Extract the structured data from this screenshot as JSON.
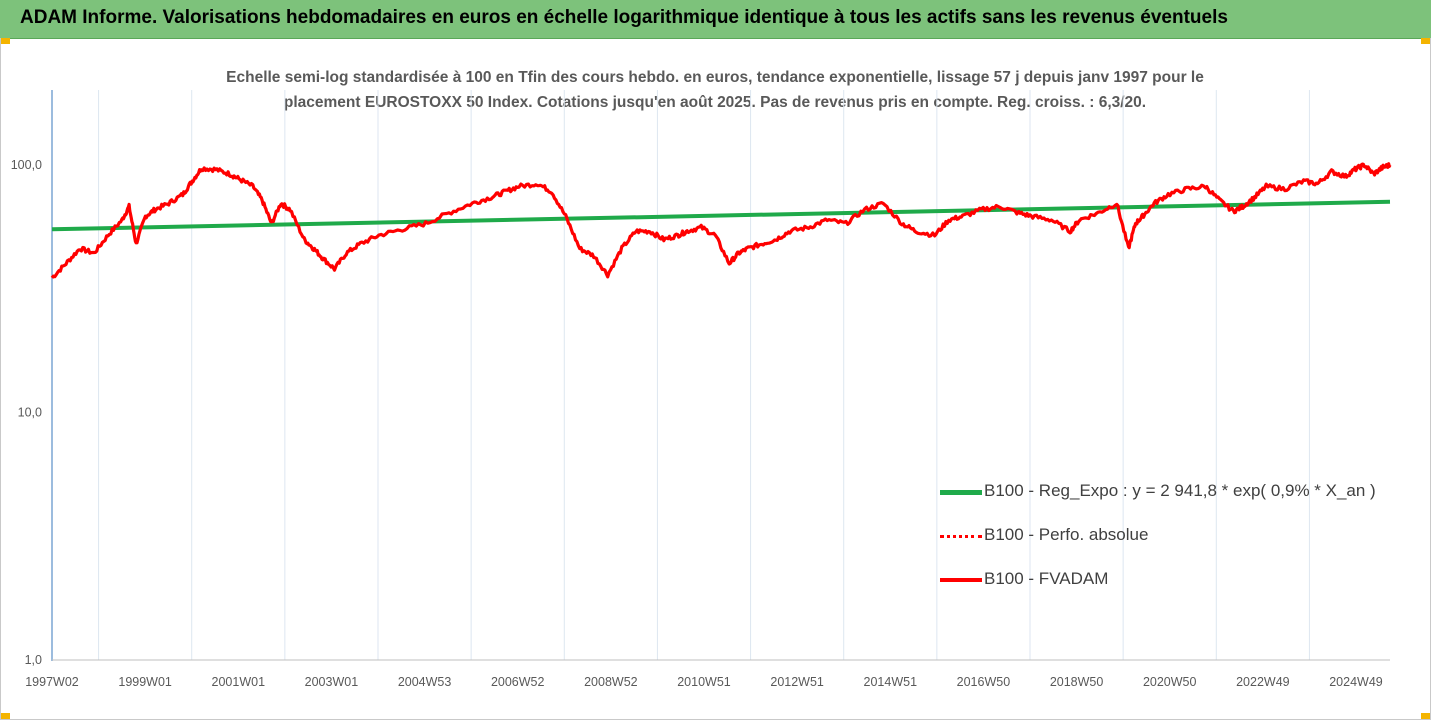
{
  "banner": {
    "title": "ADAM Informe. Valorisations hebdomadaires en euros en échelle logarithmique identique à tous les actifs sans les revenus éventuels",
    "background": "#7dc27b"
  },
  "chart_data": {
    "type": "line",
    "title": "",
    "subtitle_lines": [
      "Echelle semi-log standardisée à 100 en Tfin des cours hebdo. en euros, tendance exponentielle, lissage 57 j depuis janv 1997 pour le",
      "placement EUROSTOXX 50 Index. Cotations jusqu'en août 2025. Pas de revenus pris en compte. Reg. croiss. : 6,3/20."
    ],
    "xlabel": "",
    "ylabel": "",
    "y_scale": "log",
    "ylim": [
      1,
      180
    ],
    "y_ticks": [
      1,
      10,
      100
    ],
    "y_tick_labels": [
      "1,0",
      "10,0",
      "100,0"
    ],
    "x_ticks": [
      "1997W02",
      "1999W01",
      "2001W01",
      "2003W01",
      "2004W53",
      "2006W52",
      "2008W52",
      "2010W51",
      "2012W51",
      "2014W51",
      "2016W50",
      "2018W50",
      "2020W50",
      "2022W49",
      "2024W49"
    ],
    "x_range": [
      1997.0,
      2025.65
    ],
    "grid": "vertical",
    "legend_position": "bottom-right",
    "series": [
      {
        "name": "B100 - Reg_Expo : y = 2 941,8 * exp( 0,9% *  X_an )",
        "color": "#1faa4a",
        "style": "solid",
        "x": [
          1997.0,
          2025.65
        ],
        "y": [
          55,
          71
        ]
      },
      {
        "name": "B100 - Perfo. absolue",
        "color": "#ff0000",
        "style": "dotted",
        "x": [],
        "y": []
      },
      {
        "name": "B100 - FVADAM",
        "color": "#ff0000",
        "style": "solid",
        "x": [
          1997.0,
          1997.3,
          1997.6,
          1997.9,
          1998.2,
          1998.5,
          1998.65,
          1998.8,
          1999.0,
          1999.2,
          1999.5,
          1999.8,
          2000.0,
          2000.2,
          2000.5,
          2000.8,
          2001.0,
          2001.3,
          2001.5,
          2001.7,
          2001.9,
          2002.1,
          2002.4,
          2002.6,
          2002.8,
          2003.05,
          2003.3,
          2003.6,
          2004.0,
          2004.5,
          2005.0,
          2005.5,
          2006.0,
          2006.4,
          2006.7,
          2007.0,
          2007.4,
          2007.7,
          2008.0,
          2008.3,
          2008.6,
          2008.9,
          2009.2,
          2009.5,
          2009.8,
          2010.1,
          2010.4,
          2010.6,
          2010.9,
          2011.2,
          2011.5,
          2011.7,
          2011.9,
          2012.2,
          2012.5,
          2012.8,
          2013.2,
          2013.6,
          2014.0,
          2014.4,
          2014.8,
          2015.2,
          2015.5,
          2015.9,
          2016.2,
          2016.5,
          2016.9,
          2017.3,
          2017.7,
          2018.0,
          2018.4,
          2018.8,
          2019.0,
          2019.4,
          2019.8,
          2020.05,
          2020.2,
          2020.35,
          2020.6,
          2020.9,
          2021.3,
          2021.7,
          2022.0,
          2022.3,
          2022.5,
          2022.75,
          2023.0,
          2023.4,
          2023.8,
          2024.1,
          2024.4,
          2024.7,
          2024.9,
          2025.1,
          2025.3,
          2025.5,
          2025.65
        ],
        "y": [
          35,
          40,
          46,
          44,
          52,
          60,
          68,
          48,
          62,
          66,
          70,
          76,
          86,
          97,
          96,
          92,
          88,
          82,
          72,
          58,
          70,
          66,
          50,
          46,
          42,
          38,
          44,
          48,
          52,
          55,
          58,
          64,
          70,
          74,
          78,
          82,
          84,
          78,
          62,
          46,
          43,
          36,
          46,
          54,
          54,
          50,
          52,
          54,
          56,
          52,
          40,
          44,
          46,
          48,
          50,
          54,
          56,
          60,
          58,
          66,
          70,
          58,
          54,
          52,
          60,
          62,
          66,
          68,
          64,
          62,
          60,
          54,
          60,
          64,
          70,
          46,
          58,
          62,
          70,
          76,
          80,
          82,
          72,
          65,
          68,
          74,
          82,
          80,
          86,
          84,
          94,
          90,
          96,
          100,
          92,
          98,
          100
        ]
      }
    ]
  }
}
